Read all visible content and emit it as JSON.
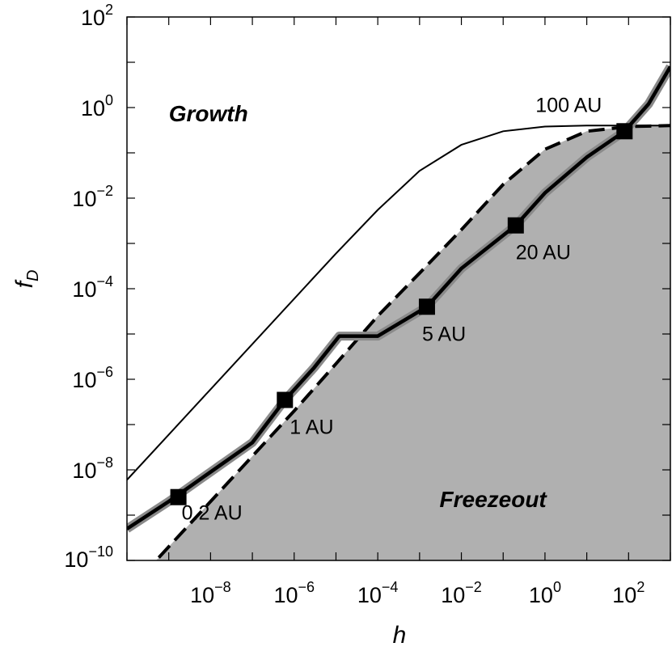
{
  "chart_data": {
    "type": "line",
    "xlabel": "h",
    "ylabel": "f",
    "ylabel_sub": "D",
    "x_scale": "log",
    "y_scale": "log",
    "xlim": [
      1e-10,
      1000.0
    ],
    "ylim": [
      1e-10,
      100.0
    ],
    "x_ticks": [
      {
        "base": "10",
        "exp": "−8",
        "value": 1e-08
      },
      {
        "base": "10",
        "exp": "−6",
        "value": 1e-06
      },
      {
        "base": "10",
        "exp": "−4",
        "value": 0.0001
      },
      {
        "base": "10",
        "exp": "−2",
        "value": 0.01
      },
      {
        "base": "10",
        "exp": "0",
        "value": 1
      },
      {
        "base": "10",
        "exp": "2",
        "value": 100
      }
    ],
    "y_ticks": [
      {
        "base": "10",
        "exp": "−10",
        "value": 1e-10
      },
      {
        "base": "10",
        "exp": "−8",
        "value": 1e-08
      },
      {
        "base": "10",
        "exp": "−6",
        "value": 1e-06
      },
      {
        "base": "10",
        "exp": "−4",
        "value": 0.0001
      },
      {
        "base": "10",
        "exp": "−2",
        "value": 0.01
      },
      {
        "base": "10",
        "exp": "0",
        "value": 1
      },
      {
        "base": "10",
        "exp": "2",
        "value": 100
      }
    ],
    "region_labels": [
      {
        "text": "Growth",
        "x": 1e-09,
        "y": 0.5
      },
      {
        "text": "Freezeout",
        "x": 0.003,
        "y": 1.5e-09
      }
    ],
    "boundary_dashed": {
      "style": "dashed",
      "points": [
        [
          1e-10,
          2e-11
        ],
        [
          1e-08,
          2e-09
        ],
        [
          1e-06,
          2e-07
        ],
        [
          1e-05,
          2.2e-06
        ],
        [
          0.0001,
          2.5e-05
        ],
        [
          0.001,
          0.00022
        ],
        [
          0.01,
          0.002
        ],
        [
          0.1,
          0.02
        ],
        [
          1,
          0.12
        ],
        [
          10,
          0.3
        ],
        [
          100,
          0.38
        ],
        [
          1000,
          0.4
        ]
      ]
    },
    "upper_thin": {
      "style": "thin",
      "points": [
        [
          1e-10,
          6e-09
        ],
        [
          1e-09,
          6e-08
        ],
        [
          1e-08,
          6e-07
        ],
        [
          1e-07,
          6e-06
        ],
        [
          1e-06,
          6e-05
        ],
        [
          1e-05,
          0.0006
        ],
        [
          0.0001,
          0.0055
        ],
        [
          0.001,
          0.04
        ],
        [
          0.01,
          0.15
        ],
        [
          0.1,
          0.3
        ],
        [
          1,
          0.38
        ],
        [
          10,
          0.4
        ],
        [
          100,
          0.4
        ],
        [
          1000,
          0.4
        ]
      ]
    },
    "disk_track": {
      "style": "thick",
      "points": [
        [
          1e-10,
          5e-10
        ],
        [
          1e-09,
          2e-09
        ],
        [
          1e-08,
          9e-09
        ],
        [
          1e-07,
          4e-08
        ],
        [
          6e-07,
          3.5e-07
        ],
        [
          3e-06,
          1.8e-06
        ],
        [
          1.2e-05,
          9e-06
        ],
        [
          0.0001,
          9e-06
        ],
        [
          0.0015,
          4e-05
        ],
        [
          0.01,
          0.00028
        ],
        [
          0.2,
          0.0025
        ],
        [
          1,
          0.013
        ],
        [
          10,
          0.08
        ],
        [
          80,
          0.3
        ],
        [
          300,
          1.2
        ],
        [
          1000,
          8
        ]
      ]
    },
    "markers": [
      {
        "label": "0.2 AU",
        "x": 1.7e-09,
        "y": 2.5e-09
      },
      {
        "label": "1 AU",
        "x": 6e-07,
        "y": 3.5e-07
      },
      {
        "label": "5 AU",
        "x": 0.0015,
        "y": 4e-05
      },
      {
        "label": "20 AU",
        "x": 0.2,
        "y": 0.0025
      },
      {
        "label": "100 AU",
        "x": 80,
        "y": 0.3
      }
    ]
  }
}
